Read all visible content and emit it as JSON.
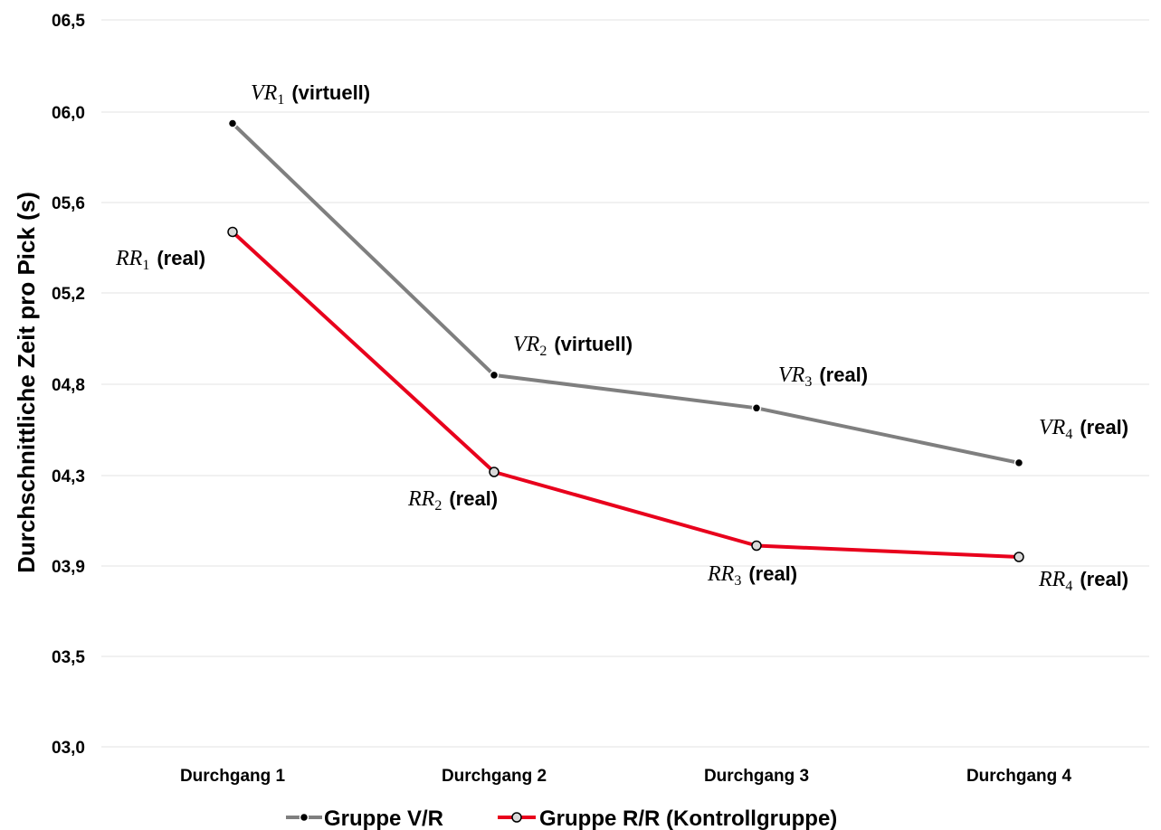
{
  "chart_data": {
    "type": "line",
    "title": "",
    "xlabel": "",
    "ylabel": "Durchschnittliche Zeit pro Pick (s)",
    "categories": [
      "Durchgang 1",
      "Durchgang 2",
      "Durchgang 3",
      "Durchgang 4"
    ],
    "ytick_labels": [
      "03,0",
      "03,5",
      "03,9",
      "04,3",
      "04,8",
      "05,2",
      "05,6",
      "06,0",
      "06,5"
    ],
    "ylim": [
      3.0,
      6.5
    ],
    "grid": true,
    "legend_position": "bottom",
    "series": [
      {
        "name": "Gruppe V/R",
        "color": "#7f7f7f",
        "marker": "filled-black",
        "values": [
          5.95,
          4.84,
          4.67,
          4.37
        ],
        "point_labels": [
          {
            "sym": "VR",
            "sub": "1",
            "text": "(virtuell)"
          },
          {
            "sym": "VR",
            "sub": "2",
            "text": "(virtuell)"
          },
          {
            "sym": "VR",
            "sub": "3",
            "text": "(real)"
          },
          {
            "sym": "VR",
            "sub": "4",
            "text": "(real)"
          }
        ]
      },
      {
        "name": "Gruppe R/R (Kontrollgruppe)",
        "color": "#e8001c",
        "marker": "open-grey",
        "values": [
          5.47,
          4.32,
          3.99,
          3.94
        ],
        "point_labels": [
          {
            "sym": "RR",
            "sub": "1",
            "text": "(real)"
          },
          {
            "sym": "RR",
            "sub": "2",
            "text": "(real)"
          },
          {
            "sym": "RR",
            "sub": "3",
            "text": "(real)"
          },
          {
            "sym": "RR",
            "sub": "4",
            "text": "(real)"
          }
        ]
      }
    ]
  }
}
